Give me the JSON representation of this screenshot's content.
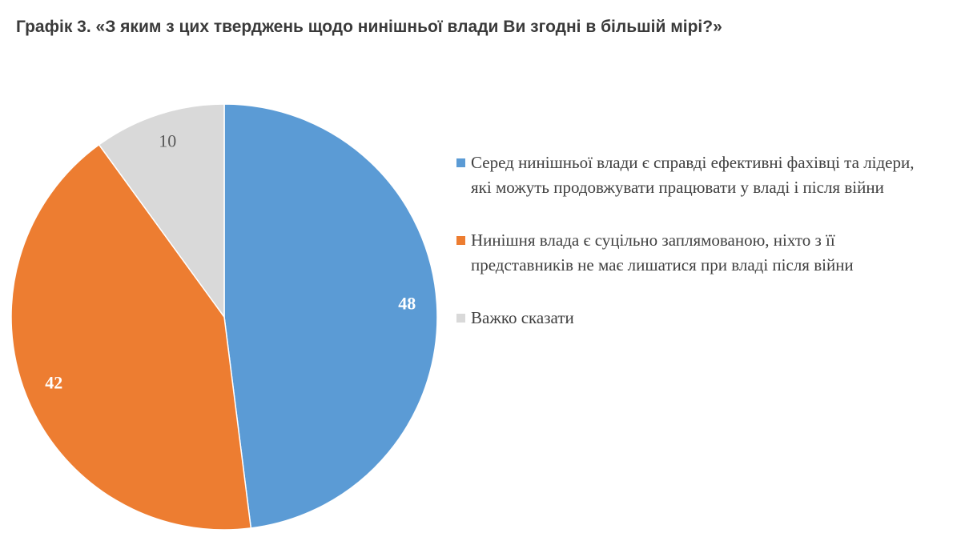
{
  "chart_data": {
    "type": "pie",
    "title": "Графік 3. «З яким з цих тверджень щодо нинішньої влади Ви згодні в більшій мірі?»",
    "categories": [
      "Серед нинішньої влади є справді ефективні фахівці та лідери, які можуть продовжувати працювати у владі і після війни",
      "Нинішня влада є суцільно заплямованою, ніхто з її представників не має лишатися при владі після війни",
      "Важко сказати"
    ],
    "values": [
      48,
      42,
      10
    ],
    "colors": [
      "#5b9bd5",
      "#ed7d31",
      "#d9d9d9"
    ],
    "value_label_colors": [
      "#ffffff",
      "#ffffff",
      "#595959"
    ],
    "legend": "right"
  }
}
